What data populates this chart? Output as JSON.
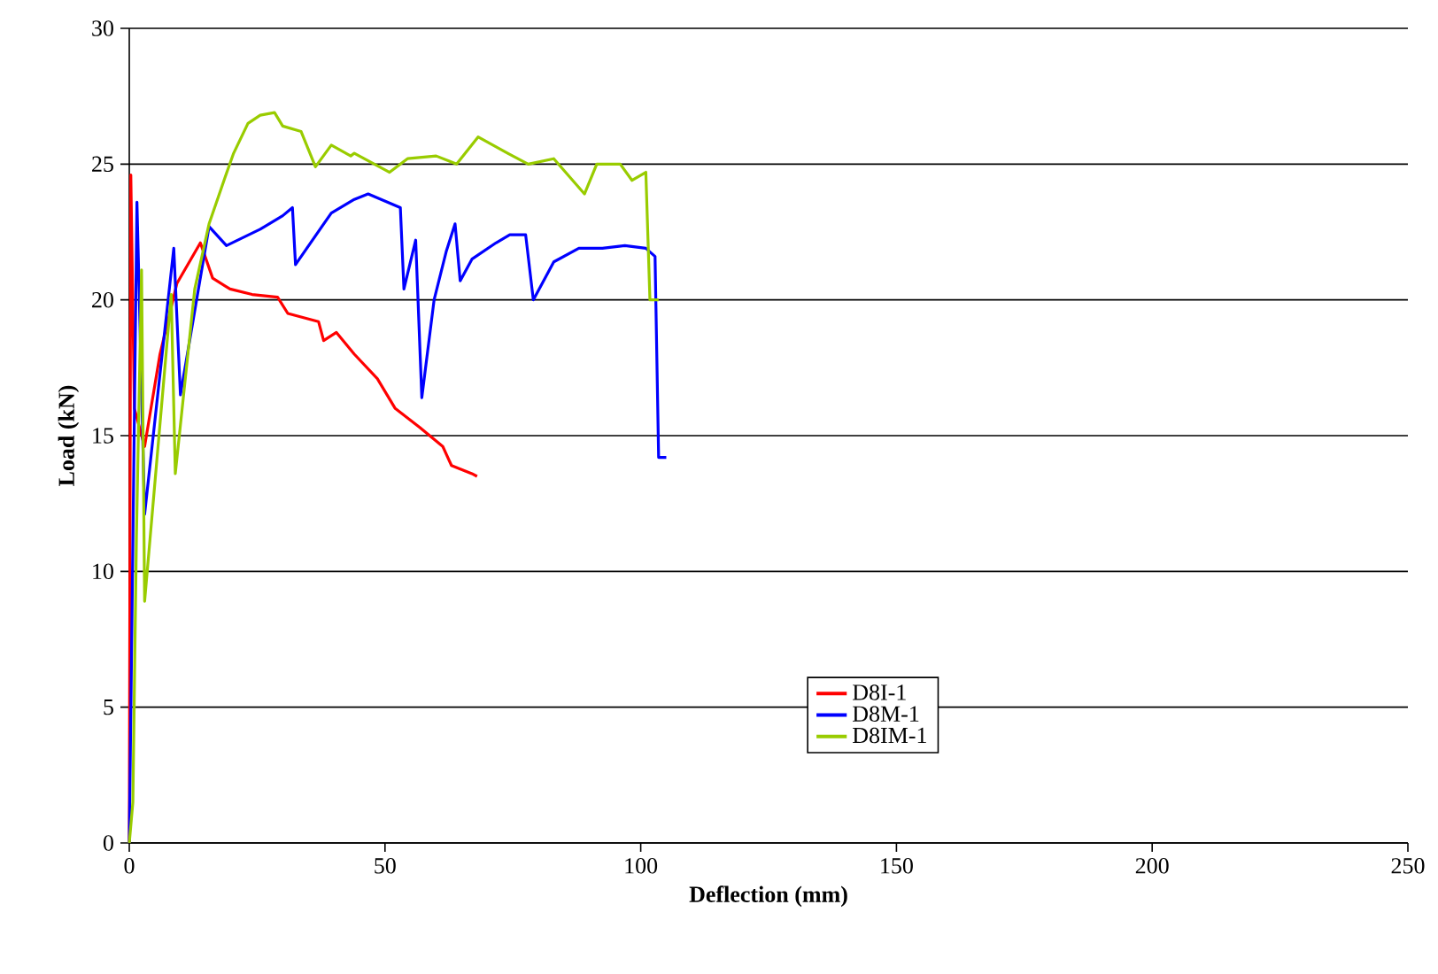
{
  "chart_data": {
    "type": "line",
    "xlabel": "Deflection (mm)",
    "ylabel": "Load (kN)",
    "xlim": [
      0,
      250
    ],
    "ylim": [
      0,
      30
    ],
    "xticks": [
      0,
      50,
      100,
      150,
      200,
      250
    ],
    "yticks": [
      0,
      5,
      10,
      15,
      20,
      25,
      30
    ],
    "grid": "y",
    "legend": "right",
    "marker": "none",
    "line_style": "solid",
    "series": [
      {
        "name": "D8I-1",
        "color": "#ff0000",
        "x": [
          0,
          0.3,
          1,
          3,
          6,
          9.3,
          13.9,
          16.3,
          19.7,
          24,
          29,
          31,
          37,
          38,
          40.5,
          44,
          48.5,
          52,
          56.8,
          61.3,
          63,
          67,
          68
        ],
        "values": [
          0,
          24.6,
          16,
          14.6,
          18,
          20.6,
          22.1,
          20.8,
          20.4,
          20.2,
          20.1,
          19.5,
          19.2,
          18.5,
          18.8,
          18.0,
          17.1,
          16.0,
          15.3,
          14.6,
          13.9,
          13.6,
          13.5
        ]
      },
      {
        "name": "D8M-1",
        "color": "#0000ff",
        "x": [
          0,
          1.5,
          3,
          8.7,
          10,
          15.6,
          19,
          25.6,
          30,
          31.9,
          32.5,
          39.5,
          44,
          46.7,
          53,
          53.7,
          56,
          57.2,
          59.6,
          62,
          63.7,
          64.7,
          67,
          71.7,
          74.4,
          77.5,
          79,
          83,
          87.9,
          92.5,
          96.9,
          101,
          102.8,
          103.5,
          105
        ],
        "values": [
          0,
          23.6,
          12.1,
          21.9,
          16.5,
          22.7,
          22.0,
          22.6,
          23.1,
          23.4,
          21.3,
          23.2,
          23.7,
          23.9,
          23.4,
          20.4,
          22.2,
          16.4,
          20.0,
          21.8,
          22.8,
          20.7,
          21.5,
          22.1,
          22.4,
          22.4,
          20.0,
          21.4,
          21.9,
          21.9,
          22.0,
          21.9,
          21.6,
          14.2,
          14.2
        ]
      },
      {
        "name": "D8IM-1",
        "color": "#99cc00",
        "x": [
          0,
          0.7,
          1.4,
          2.4,
          3,
          8.2,
          9,
          12.8,
          15.6,
          18.7,
          20.4,
          23.2,
          25.6,
          28.4,
          30,
          33.6,
          36.4,
          39.5,
          43.3,
          44,
          50.9,
          54.4,
          60,
          64,
          68.2,
          74,
          78,
          83,
          89,
          91.4,
          96,
          98.3,
          101,
          101.8,
          103.5
        ],
        "values": [
          0,
          1.5,
          11.3,
          21.1,
          8.9,
          20.2,
          13.6,
          20.4,
          22.8,
          24.5,
          25.4,
          26.5,
          26.8,
          26.9,
          26.4,
          26.2,
          24.9,
          25.7,
          25.3,
          25.4,
          24.7,
          25.2,
          25.3,
          25.0,
          26.0,
          25.4,
          25.0,
          25.2,
          23.9,
          25.0,
          25.0,
          24.4,
          24.7,
          20.0,
          20.0
        ]
      }
    ]
  }
}
